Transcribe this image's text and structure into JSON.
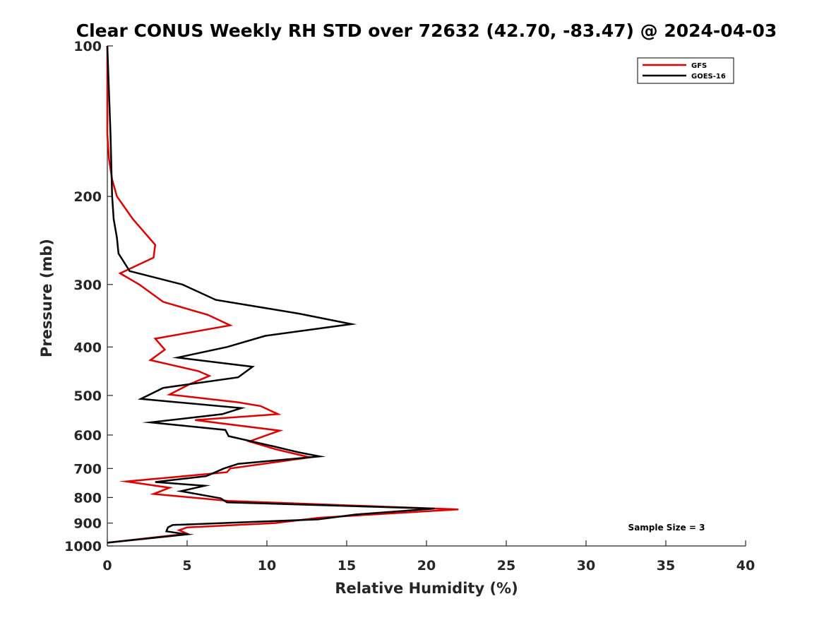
{
  "chart_data": {
    "type": "line",
    "title": "Clear CONUS Weekly RH STD over 72632 (42.70, -83.47) @ 2024-04-03",
    "xlabel": "Relative Humidity (%)",
    "ylabel": "Pressure (mb)",
    "xlim": [
      0,
      40
    ],
    "ylim": [
      100,
      1000
    ],
    "y_scale": "log",
    "y_reversed": true,
    "x_ticks": [
      0,
      5,
      10,
      15,
      20,
      25,
      30,
      35,
      40
    ],
    "y_ticks": [
      100,
      200,
      300,
      400,
      500,
      600,
      700,
      800,
      900,
      1000
    ],
    "grid": false,
    "legend_position": "top-right",
    "annotation": "Sample Size = 3",
    "series": [
      {
        "name": "GFS",
        "color": "#e00000",
        "points": [
          [
            0.0,
            100
          ],
          [
            0.0,
            150
          ],
          [
            0.1,
            168
          ],
          [
            0.3,
            185
          ],
          [
            0.6,
            200
          ],
          [
            1.6,
            222
          ],
          [
            3.0,
            250
          ],
          [
            2.9,
            265
          ],
          [
            0.8,
            285
          ],
          [
            2.0,
            300
          ],
          [
            3.5,
            325
          ],
          [
            6.3,
            345
          ],
          [
            7.7,
            362
          ],
          [
            3.0,
            385
          ],
          [
            3.6,
            405
          ],
          [
            2.7,
            425
          ],
          [
            5.7,
            447
          ],
          [
            6.4,
            457
          ],
          [
            5.2,
            474
          ],
          [
            3.9,
            498
          ],
          [
            8.2,
            516
          ],
          [
            9.6,
            525
          ],
          [
            10.7,
            545
          ],
          [
            5.5,
            560
          ],
          [
            10.8,
            588
          ],
          [
            8.9,
            618
          ],
          [
            10.5,
            640
          ],
          [
            12.7,
            665
          ],
          [
            7.7,
            700
          ],
          [
            7.5,
            712
          ],
          [
            1.2,
            743
          ],
          [
            3.9,
            765
          ],
          [
            2.9,
            787
          ],
          [
            7.6,
            813
          ],
          [
            22.0,
            845
          ],
          [
            13.3,
            878
          ],
          [
            10.5,
            900
          ],
          [
            5.0,
            918
          ],
          [
            4.5,
            930
          ],
          [
            5.0,
            945
          ],
          [
            0.0,
            985
          ]
        ]
      },
      {
        "name": "GOES-16",
        "color": "#000000",
        "points": [
          [
            0.0,
            100
          ],
          [
            0.2,
            150
          ],
          [
            0.3,
            200
          ],
          [
            0.4,
            222
          ],
          [
            0.6,
            242
          ],
          [
            0.7,
            260
          ],
          [
            1.4,
            282
          ],
          [
            4.7,
            300
          ],
          [
            6.8,
            322
          ],
          [
            12.0,
            343
          ],
          [
            15.3,
            360
          ],
          [
            9.9,
            380
          ],
          [
            7.5,
            400
          ],
          [
            4.4,
            420
          ],
          [
            9.1,
            438
          ],
          [
            8.2,
            460
          ],
          [
            3.5,
            483
          ],
          [
            2.1,
            508
          ],
          [
            8.4,
            530
          ],
          [
            7.2,
            545
          ],
          [
            2.7,
            566
          ],
          [
            7.4,
            586
          ],
          [
            7.6,
            603
          ],
          [
            10.4,
            632
          ],
          [
            12.0,
            650
          ],
          [
            13.3,
            662
          ],
          [
            8.2,
            685
          ],
          [
            7.3,
            700
          ],
          [
            6.2,
            725
          ],
          [
            3.0,
            745
          ],
          [
            6.1,
            758
          ],
          [
            4.6,
            777
          ],
          [
            7.1,
            803
          ],
          [
            7.5,
            818
          ],
          [
            20.5,
            842
          ],
          [
            15.6,
            865
          ],
          [
            13.2,
            885
          ],
          [
            4.1,
            908
          ],
          [
            3.8,
            918
          ],
          [
            3.7,
            935
          ],
          [
            5.0,
            948
          ],
          [
            0.0,
            985
          ]
        ]
      }
    ]
  }
}
